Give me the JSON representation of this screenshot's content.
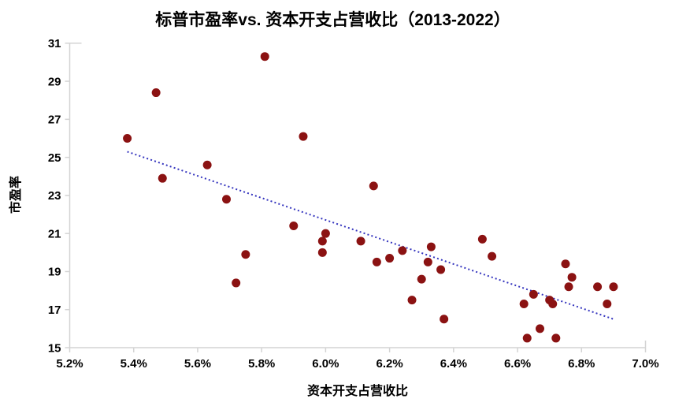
{
  "chart_data": {
    "type": "scatter",
    "title": "标普市盈率vs. 资本开支占营收比（2013-2022）",
    "xlabel": "资本开支占营收比",
    "ylabel": "市盈率",
    "xlim": [
      5.2,
      7.0
    ],
    "ylim": [
      15,
      31
    ],
    "x_tick_values": [
      5.2,
      5.4,
      5.6,
      5.8,
      6.0,
      6.2,
      6.4,
      6.6,
      6.8,
      7.0
    ],
    "x_tick_labels": [
      "5.2%",
      "5.4%",
      "5.6%",
      "5.8%",
      "6.0%",
      "6.2%",
      "6.4%",
      "6.6%",
      "6.8%",
      "7.0%"
    ],
    "y_tick_values": [
      15,
      17,
      19,
      21,
      23,
      25,
      27,
      29,
      31
    ],
    "y_tick_labels": [
      "15",
      "17",
      "19",
      "21",
      "23",
      "25",
      "27",
      "29",
      "31"
    ],
    "grid": false,
    "legend": null,
    "points": [
      [
        5.38,
        26.0
      ],
      [
        5.47,
        28.4
      ],
      [
        5.49,
        23.9
      ],
      [
        5.63,
        24.6
      ],
      [
        5.69,
        22.8
      ],
      [
        5.72,
        18.4
      ],
      [
        5.75,
        19.9
      ],
      [
        5.81,
        30.3
      ],
      [
        5.9,
        21.4
      ],
      [
        5.93,
        26.1
      ],
      [
        5.99,
        20.6
      ],
      [
        5.99,
        20.0
      ],
      [
        6.0,
        21.0
      ],
      [
        6.11,
        20.6
      ],
      [
        6.15,
        23.5
      ],
      [
        6.16,
        19.5
      ],
      [
        6.2,
        19.7
      ],
      [
        6.24,
        20.1
      ],
      [
        6.27,
        17.5
      ],
      [
        6.3,
        18.6
      ],
      [
        6.32,
        19.5
      ],
      [
        6.33,
        20.3
      ],
      [
        6.36,
        19.1
      ],
      [
        6.37,
        16.5
      ],
      [
        6.49,
        20.7
      ],
      [
        6.52,
        19.8
      ],
      [
        6.62,
        17.3
      ],
      [
        6.63,
        15.5
      ],
      [
        6.65,
        17.8
      ],
      [
        6.67,
        16.0
      ],
      [
        6.7,
        17.5
      ],
      [
        6.71,
        17.3
      ],
      [
        6.72,
        15.5
      ],
      [
        6.75,
        19.4
      ],
      [
        6.76,
        18.2
      ],
      [
        6.77,
        18.7
      ],
      [
        6.85,
        18.2
      ],
      [
        6.88,
        17.3
      ],
      [
        6.9,
        18.2
      ]
    ],
    "trendline": {
      "x1": 5.38,
      "y1": 25.3,
      "x2": 6.9,
      "y2": 16.5,
      "style": "dotted"
    },
    "colors": {
      "point": "#8B1212",
      "trend": "#3434BE",
      "axis": "#D4D4D4",
      "text": "#000000"
    }
  }
}
